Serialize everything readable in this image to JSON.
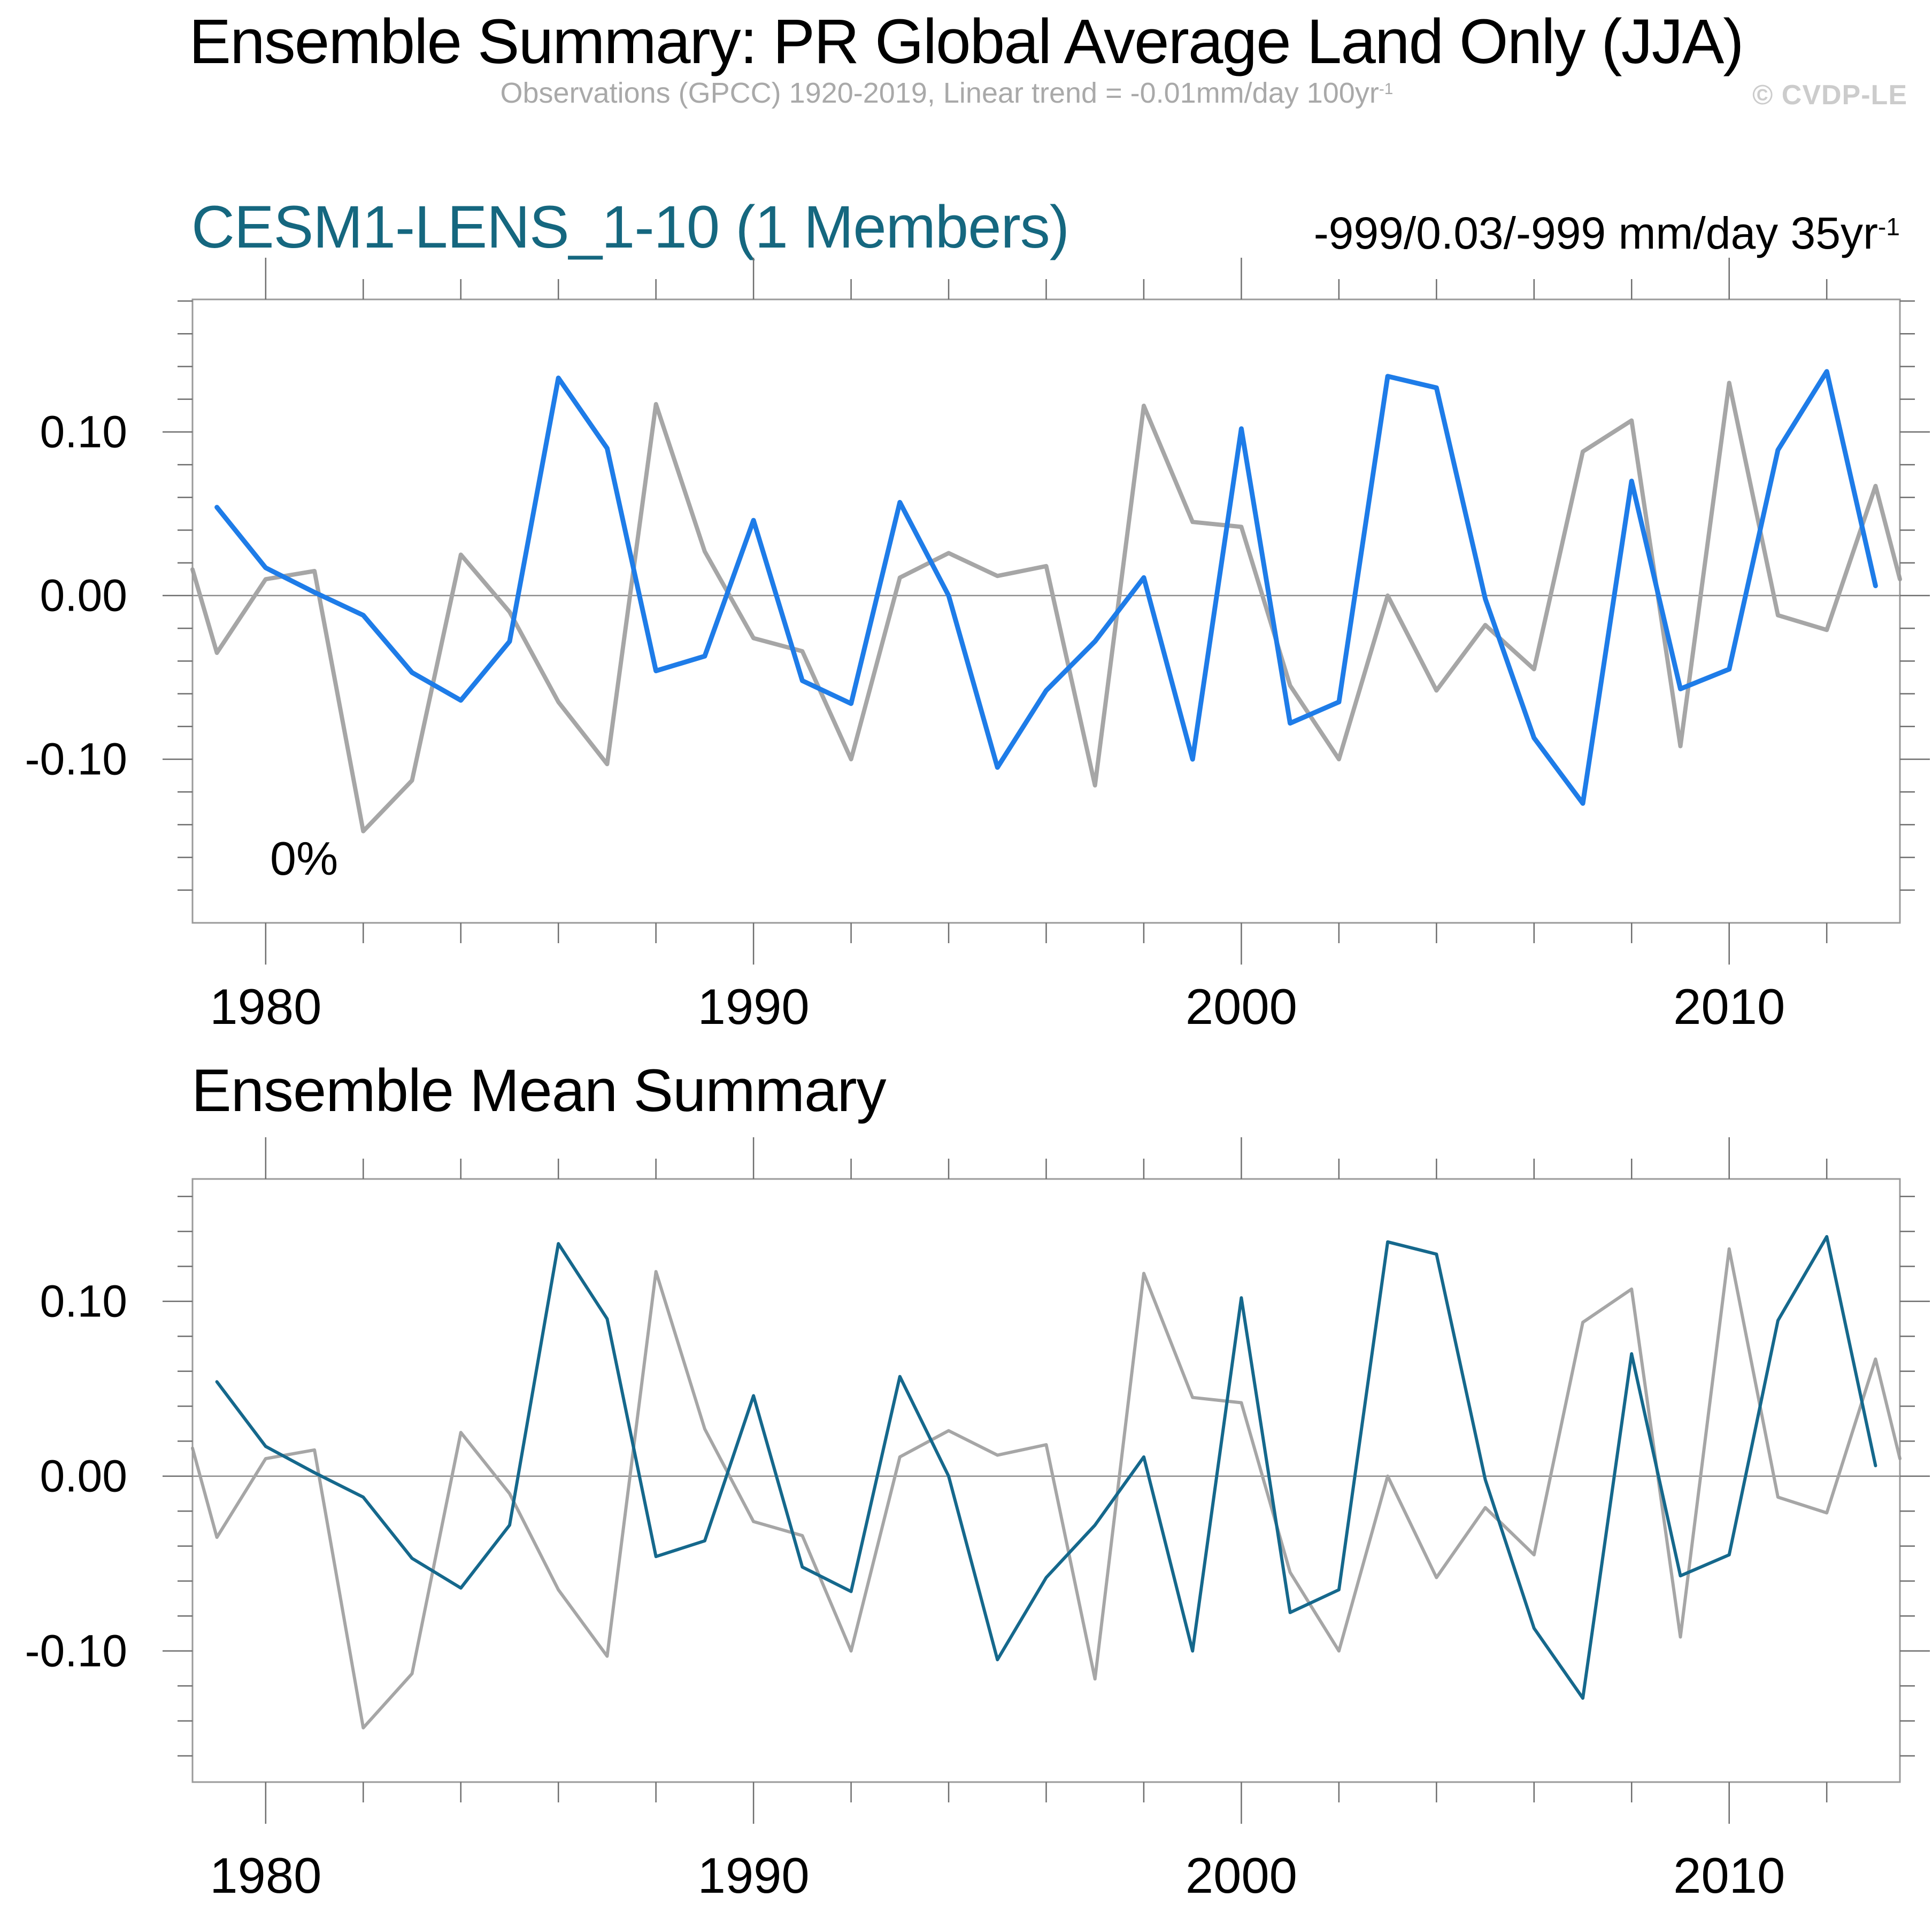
{
  "header": {
    "title": "Ensemble Summary: PR Global Average Land Only (JJA)",
    "subtitle_main": "Observations (GPCC) 1920-2019, Linear trend = -0.01mm/day 100yr",
    "subtitle_sup": "-1",
    "copyright": "© CVDP-LE"
  },
  "panel1": {
    "heading": "CESM1-LENS_1-10 (1 Members)",
    "heading_color": "#15677f",
    "stats_main": "-999/0.03/-999 mm/day 35yr",
    "stats_sup": "-1"
  },
  "panel2": {
    "heading": "Ensemble Mean Summary"
  },
  "chart_data": [
    {
      "type": "line",
      "name": "member-timeseries",
      "grid": false,
      "legend": "none",
      "xlim": [
        1978.5,
        2013.5
      ],
      "ylim": [
        -0.2,
        0.181
      ],
      "xticks_major": [
        1980,
        1990,
        2000,
        2010
      ],
      "xtick_labels": [
        "1980",
        "1990",
        "2000",
        "2010"
      ],
      "xticks_minor": [
        1982,
        1984,
        1986,
        1988,
        1992,
        1994,
        1996,
        1998,
        2002,
        2004,
        2006,
        2008,
        2012
      ],
      "yticks_major": [
        -0.1,
        0.0,
        0.1
      ],
      "ytick_labels": [
        "-0.10",
        "0.00",
        "0.10"
      ],
      "ytick_minor_step": 0.02,
      "zero_line": true,
      "annotation": {
        "text": "0%"
      },
      "series": [
        {
          "name": "Observations (GPCC)",
          "color": "#a6a6a6",
          "width": 8,
          "x": [
            1978.5,
            1979,
            1980,
            1981,
            1982,
            1983,
            1984,
            1985,
            1986,
            1987,
            1988,
            1989,
            1990,
            1991,
            1992,
            1993,
            1994,
            1995,
            1996,
            1997,
            1998,
            1999,
            2000,
            2001,
            2002,
            2003,
            2004,
            2005,
            2006,
            2007,
            2008,
            2009,
            2010,
            2011,
            2012,
            2013,
            2013.5
          ],
          "values": [
            0.016,
            -0.035,
            0.01,
            0.015,
            -0.144,
            -0.113,
            0.025,
            -0.01,
            -0.065,
            -0.103,
            0.117,
            0.027,
            -0.026,
            -0.034,
            -0.1,
            0.011,
            0.026,
            0.012,
            0.018,
            -0.116,
            0.116,
            0.045,
            0.042,
            -0.055,
            -0.1,
            0.0,
            -0.058,
            -0.018,
            -0.045,
            0.088,
            0.107,
            -0.092,
            0.13,
            -0.012,
            -0.021,
            0.067,
            0.01
          ]
        },
        {
          "name": "CESM1-LENS_1-10 member 1",
          "color": "#1e7ce8",
          "width": 9,
          "x": [
            1979,
            1980,
            1981,
            1982,
            1983,
            1984,
            1985,
            1986,
            1987,
            1988,
            1989,
            1990,
            1991,
            1992,
            1993,
            1994,
            1995,
            1996,
            1997,
            1998,
            1999,
            2000,
            2001,
            2002,
            2003,
            2004,
            2005,
            2006,
            2007,
            2008,
            2009,
            2010,
            2011,
            2012,
            2013
          ],
          "values": [
            0.054,
            0.017,
            0.002,
            -0.012,
            -0.047,
            -0.064,
            -0.028,
            0.133,
            0.09,
            -0.046,
            -0.037,
            0.046,
            -0.052,
            -0.066,
            0.057,
            0.0,
            -0.105,
            -0.058,
            -0.028,
            0.011,
            -0.1,
            0.102,
            -0.078,
            -0.065,
            0.134,
            0.127,
            -0.002,
            -0.087,
            -0.127,
            0.07,
            -0.057,
            -0.045,
            0.089,
            0.137,
            0.006
          ]
        }
      ]
    },
    {
      "type": "line",
      "name": "ensemble-mean-timeseries",
      "grid": false,
      "legend": "none",
      "xlim": [
        1978.5,
        2013.5
      ],
      "ylim": [
        -0.175,
        0.17
      ],
      "xticks_major": [
        1980,
        1990,
        2000,
        2010
      ],
      "xtick_labels": [
        "1980",
        "1990",
        "2000",
        "2010"
      ],
      "xticks_minor": [
        1982,
        1984,
        1986,
        1988,
        1992,
        1994,
        1996,
        1998,
        2002,
        2004,
        2006,
        2008,
        2012
      ],
      "yticks_major": [
        -0.1,
        0.0,
        0.1
      ],
      "ytick_labels": [
        "-0.10",
        "0.00",
        "0.10"
      ],
      "ytick_minor_step": 0.02,
      "zero_line": true,
      "annotation": null,
      "series": [
        {
          "name": "Observations (GPCC)",
          "color": "#a6a6a6",
          "width": 6,
          "x": [
            1978.5,
            1979,
            1980,
            1981,
            1982,
            1983,
            1984,
            1985,
            1986,
            1987,
            1988,
            1989,
            1990,
            1991,
            1992,
            1993,
            1994,
            1995,
            1996,
            1997,
            1998,
            1999,
            2000,
            2001,
            2002,
            2003,
            2004,
            2005,
            2006,
            2007,
            2008,
            2009,
            2010,
            2011,
            2012,
            2013,
            2013.5
          ],
          "values": [
            0.016,
            -0.035,
            0.01,
            0.015,
            -0.144,
            -0.113,
            0.025,
            -0.01,
            -0.065,
            -0.103,
            0.117,
            0.027,
            -0.026,
            -0.034,
            -0.1,
            0.011,
            0.026,
            0.012,
            0.018,
            -0.116,
            0.116,
            0.045,
            0.042,
            -0.055,
            -0.1,
            0.0,
            -0.058,
            -0.018,
            -0.045,
            0.088,
            0.107,
            -0.092,
            0.13,
            -0.012,
            -0.021,
            0.067,
            0.01
          ]
        },
        {
          "name": "CESM1-LENS_1-10 ensemble mean",
          "color": "#15688c",
          "width": 6,
          "x": [
            1979,
            1980,
            1981,
            1982,
            1983,
            1984,
            1985,
            1986,
            1987,
            1988,
            1989,
            1990,
            1991,
            1992,
            1993,
            1994,
            1995,
            1996,
            1997,
            1998,
            1999,
            2000,
            2001,
            2002,
            2003,
            2004,
            2005,
            2006,
            2007,
            2008,
            2009,
            2010,
            2011,
            2012,
            2013
          ],
          "values": [
            0.054,
            0.017,
            0.002,
            -0.012,
            -0.047,
            -0.064,
            -0.028,
            0.133,
            0.09,
            -0.046,
            -0.037,
            0.046,
            -0.052,
            -0.066,
            0.057,
            0.0,
            -0.105,
            -0.058,
            -0.028,
            0.011,
            -0.1,
            0.102,
            -0.078,
            -0.065,
            0.134,
            0.127,
            -0.002,
            -0.087,
            -0.127,
            0.07,
            -0.057,
            -0.045,
            0.089,
            0.137,
            0.006
          ]
        }
      ]
    }
  ]
}
